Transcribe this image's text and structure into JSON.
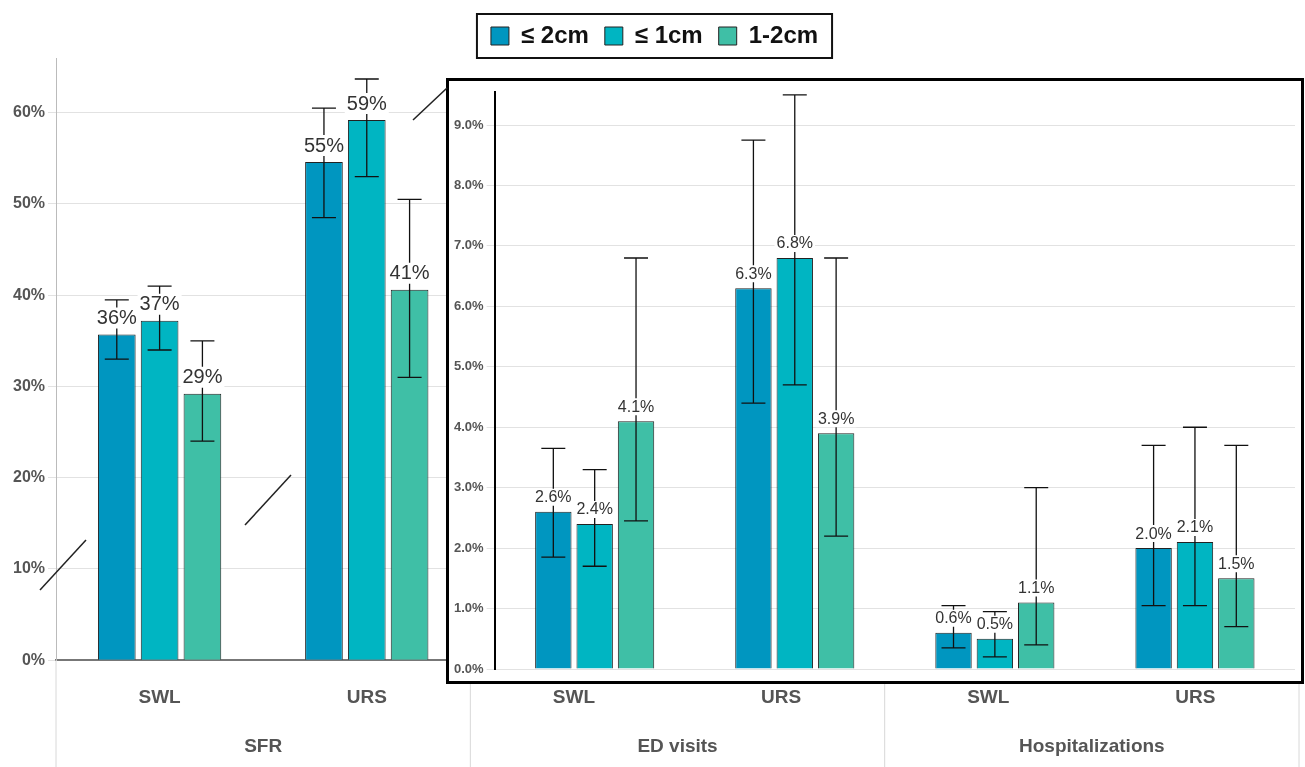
{
  "chart_data": [
    {
      "type": "bar",
      "categories": [
        "SWL",
        "URS",
        "SWL",
        "URS",
        "SWL",
        "URS"
      ],
      "annotations": [
        "SFR",
        "ED visits",
        "Hospitalizations"
      ],
      "ylim": [
        0,
        66
      ],
      "yticks": [
        {
          "value": 0,
          "label": "0%"
        },
        {
          "value": 10,
          "label": "10%"
        },
        {
          "value": 20,
          "label": "20%"
        },
        {
          "value": 30,
          "label": "30%"
        },
        {
          "value": 40,
          "label": "40%"
        },
        {
          "value": 50,
          "label": "50%"
        },
        {
          "value": 60,
          "label": "60%"
        }
      ],
      "grid": "y",
      "legend": "top",
      "series": [
        {
          "name": "≤ 2cm",
          "color": "#0096c0",
          "values": [
            35.7,
            54.6,
            null,
            null,
            null,
            null
          ],
          "errors": [
            [
              33,
              39.5
            ],
            [
              48.5,
              60.5
            ],
            null,
            null,
            null,
            null
          ],
          "value_labels": [
            "36%",
            "55%",
            null,
            null,
            null,
            null
          ]
        },
        {
          "name": "≤ 1cm",
          "color": "#00b5c2",
          "values": [
            37.2,
            59.2,
            null,
            null,
            null,
            null
          ],
          "errors": [
            [
              34,
              41
            ],
            [
              53,
              63.7
            ],
            null,
            null,
            null,
            null
          ],
          "value_labels": [
            "37%",
            "59%",
            null,
            null,
            null,
            null
          ]
        },
        {
          "name": "1-2cm",
          "color": "#3fbfa6",
          "values": [
            29.2,
            40.6,
            null,
            null,
            null,
            null
          ],
          "errors": [
            [
              24,
              35
            ],
            [
              31,
              50.5
            ],
            null,
            null,
            null,
            null
          ],
          "value_labels": [
            "29%",
            "41%",
            null,
            null,
            null,
            null
          ]
        }
      ]
    },
    {
      "type": "bar",
      "categories": [
        null,
        null,
        null,
        null
      ],
      "tick_labels": "y",
      "ylim": [
        0,
        9.55
      ],
      "yticks": [
        {
          "value": 0,
          "label": "0.0%"
        },
        {
          "value": 1,
          "label": "1.0%"
        },
        {
          "value": 2,
          "label": "2.0%"
        },
        {
          "value": 3,
          "label": "3.0%"
        },
        {
          "value": 4,
          "label": "4.0%"
        },
        {
          "value": 5,
          "label": "5.0%"
        },
        {
          "value": 6,
          "label": "6.0%"
        },
        {
          "value": 7,
          "label": "7.0%"
        },
        {
          "value": 8,
          "label": "8.0%"
        },
        {
          "value": 9,
          "label": "9.0%"
        }
      ],
      "grid": "y",
      "series": [
        {
          "color": "#0096c0",
          "values": [
            2.6,
            6.3,
            0.6,
            2.0
          ],
          "errors": [
            [
              1.85,
              3.65
            ],
            [
              4.4,
              8.75
            ],
            [
              0.35,
              1.05
            ],
            [
              1.05,
              3.7
            ]
          ],
          "value_labels": [
            "2.6%",
            "6.3%",
            "0.6%",
            "2.0%"
          ]
        },
        {
          "color": "#00b5c2",
          "values": [
            2.4,
            6.8,
            0.5,
            2.1
          ],
          "errors": [
            [
              1.7,
              3.3
            ],
            [
              4.7,
              9.5
            ],
            [
              0.2,
              0.95
            ],
            [
              1.05,
              4.0
            ]
          ],
          "value_labels": [
            "2.4%",
            "6.8%",
            "0.5%",
            "2.1%"
          ]
        },
        {
          "color": "#3fbfa6",
          "values": [
            4.1,
            3.9,
            1.1,
            1.5
          ],
          "errors": [
            [
              2.45,
              6.8
            ],
            [
              2.2,
              6.8
            ],
            [
              0.4,
              3.0
            ],
            [
              0.7,
              3.7
            ]
          ],
          "value_labels": [
            "4.1%",
            "3.9%",
            "1.1%",
            "1.5%"
          ]
        }
      ]
    }
  ]
}
